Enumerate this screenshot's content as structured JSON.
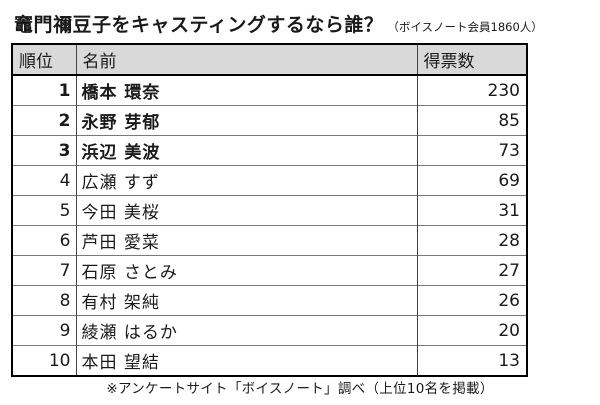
{
  "header": {
    "title": "竈門禰豆子をキャスティングするなら誰？",
    "subtitle": "（ボイスノート会員1860人）"
  },
  "table": {
    "columns": [
      "順位",
      "名前",
      "得票数"
    ],
    "rows": [
      {
        "rank": "1",
        "name": "橋本 環奈",
        "votes": "230"
      },
      {
        "rank": "2",
        "name": "永野 芽郁",
        "votes": "85"
      },
      {
        "rank": "3",
        "name": "浜辺 美波",
        "votes": "73"
      },
      {
        "rank": "4",
        "name": "広瀬 すず",
        "votes": "69"
      },
      {
        "rank": "5",
        "name": "今田 美桜",
        "votes": "31"
      },
      {
        "rank": "6",
        "name": "芦田 愛菜",
        "votes": "28"
      },
      {
        "rank": "7",
        "name": "石原 さとみ",
        "votes": "27"
      },
      {
        "rank": "8",
        "name": "有村 架純",
        "votes": "26"
      },
      {
        "rank": "9",
        "name": "綾瀬 はるか",
        "votes": "20"
      },
      {
        "rank": "10",
        "name": "本田 望結",
        "votes": "13"
      }
    ]
  },
  "footer": {
    "note": "※アンケートサイト「ボイスノート」調べ（上位10名を掲載）"
  }
}
